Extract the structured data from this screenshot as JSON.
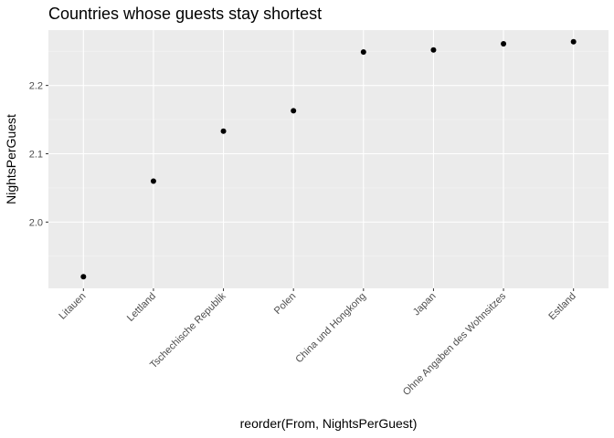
{
  "chart_data": {
    "type": "scatter",
    "title": "Countries whose guests stay shortest",
    "xlabel": "reorder(From, NightsPerGuest)",
    "ylabel": "NightsPerGuest",
    "categories": [
      "Litauen",
      "Lettland",
      "Tschechische Republik",
      "Polen",
      "China und Hongkong",
      "Japan",
      "Ohne Angaben des Wohnsitzes",
      "Estland"
    ],
    "values": [
      1.92,
      2.06,
      2.133,
      2.163,
      2.249,
      2.252,
      2.261,
      2.264
    ],
    "y_ticks": [
      2.0,
      2.1,
      2.2
    ],
    "y_tick_labels": [
      "2.0",
      "2.1",
      "2.2"
    ],
    "ylim": [
      1.903,
      2.281
    ],
    "grid": true,
    "legend": "none",
    "colors": {
      "panel": "#ebebeb",
      "grid_major": "#ffffff",
      "grid_minor": "#f4f4f4",
      "point": "#000000",
      "tick": "#333333",
      "tick_label": "#4d4d4d"
    }
  }
}
